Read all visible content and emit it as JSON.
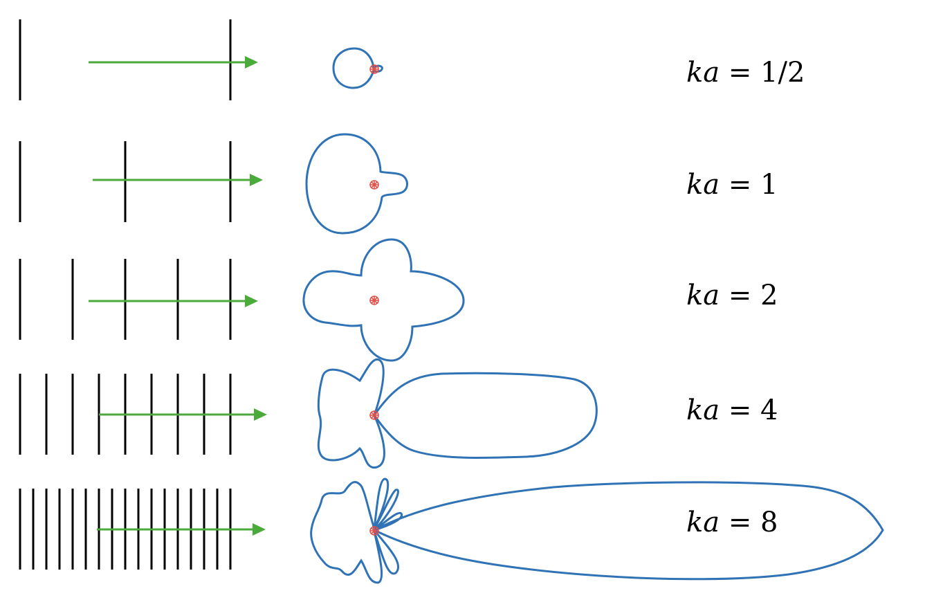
{
  "rows": [
    {
      "var": "ka",
      "equals": "=",
      "value": "1/2"
    },
    {
      "var": "ka",
      "equals": "=",
      "value": "1"
    },
    {
      "var": "ka",
      "equals": "=",
      "value": "2"
    },
    {
      "var": "ka",
      "equals": "=",
      "value": "4"
    },
    {
      "var": "ka",
      "equals": "=",
      "value": "8"
    }
  ],
  "colors": {
    "wavefront": "#000000",
    "arrow": "#4aaa3a",
    "pattern": "#2f72b5",
    "source": "#e0504a"
  }
}
